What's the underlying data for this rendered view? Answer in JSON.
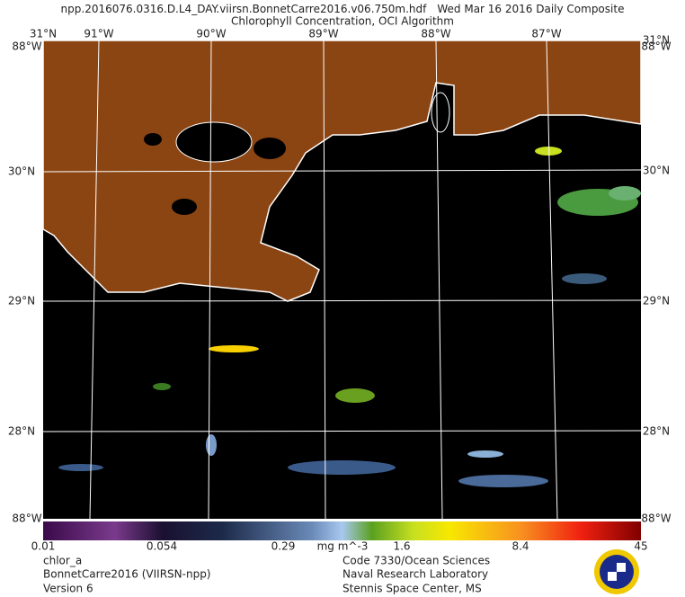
{
  "header": {
    "filename": "npp.2016076.0316.D.L4_DAY.viirsn.BonnetCarre2016.v06.750m.hdf",
    "date": "Wed Mar 16 2016 Daily Composite",
    "subtitle": "Chlorophyll Concentration, OCI Algorithm"
  },
  "map": {
    "top_labels": [
      "31°N",
      "91°W",
      "90°W",
      "89°W",
      "88°W",
      "87°W",
      "31°N"
    ],
    "left_labels": [
      "30°N",
      "29°N",
      "28°N"
    ],
    "right_labels": [
      "30°N",
      "29°N",
      "28°N"
    ],
    "corner_labels": [
      "88°W",
      "88°W",
      "88°W",
      "88°W"
    ]
  },
  "colorbar": {
    "labels": [
      "0.01",
      "0.054",
      "0.29",
      "1.6",
      "8.4",
      "45"
    ],
    "units": "mg m^-3"
  },
  "footer": {
    "left": [
      "chlor_a",
      "BonnetCarre2016 (VIIRSN-npp)",
      "Version 6"
    ],
    "right": [
      "Code 7330/Ocean Sciences",
      "Naval Research Laboratory",
      "Stennis Space Center, MS"
    ]
  }
}
